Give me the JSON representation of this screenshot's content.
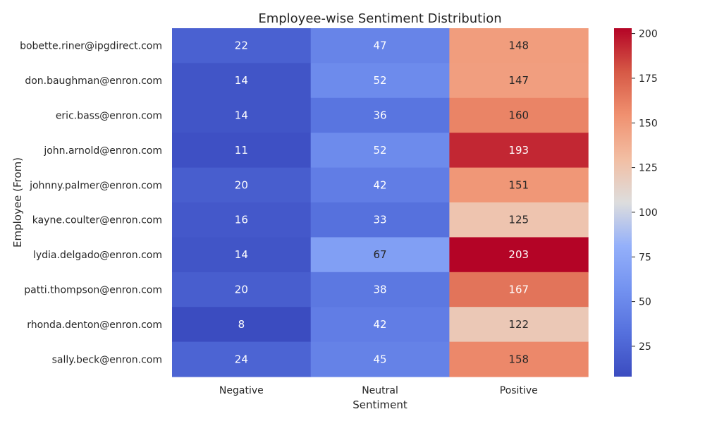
{
  "chart_data": {
    "type": "heatmap",
    "title": "Employee-wise Sentiment Distribution",
    "xlabel": "Sentiment",
    "ylabel": "Employee (From)",
    "x_categories": [
      "Negative",
      "Neutral",
      "Positive"
    ],
    "y_categories": [
      "bobette.riner@ipgdirect.com",
      "don.baughman@enron.com",
      "eric.bass@enron.com",
      "john.arnold@enron.com",
      "johnny.palmer@enron.com",
      "kayne.coulter@enron.com",
      "lydia.delgado@enron.com",
      "patti.thompson@enron.com",
      "rhonda.denton@enron.com",
      "sally.beck@enron.com"
    ],
    "values": [
      [
        22,
        47,
        148
      ],
      [
        14,
        52,
        147
      ],
      [
        14,
        36,
        160
      ],
      [
        11,
        52,
        193
      ],
      [
        20,
        42,
        151
      ],
      [
        16,
        33,
        125
      ],
      [
        14,
        67,
        203
      ],
      [
        20,
        38,
        167
      ],
      [
        8,
        42,
        122
      ],
      [
        24,
        45,
        158
      ]
    ],
    "colorbar": {
      "colormap": "coolwarm",
      "vmin": 8,
      "vmax": 203,
      "ticks": [
        25,
        50,
        75,
        100,
        125,
        150,
        175,
        200
      ]
    },
    "annotations": true
  }
}
